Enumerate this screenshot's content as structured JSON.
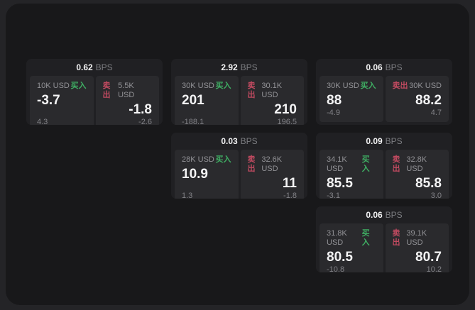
{
  "labels": {
    "bps_unit": "BPS",
    "buy": "买入",
    "sell": "卖出"
  },
  "colors": {
    "buy_green": "#3fae63",
    "sell_red": "#c04a60",
    "window_bg": "#18181a",
    "card_bg": "#202023",
    "panel_bg": "#2a2a2d"
  },
  "cards": [
    {
      "bps": "0.62",
      "buy": {
        "size": "10K USD",
        "price": "-3.7",
        "delta": "4.3"
      },
      "sell": {
        "size": "5.5K USD",
        "price": "-1.8",
        "delta": "-2.6"
      }
    },
    {
      "bps": "2.92",
      "buy": {
        "size": "30K USD",
        "price": "201",
        "delta": "-188.1"
      },
      "sell": {
        "size": "30.1K USD",
        "price": "210",
        "delta": "196.5"
      }
    },
    {
      "bps": "0.06",
      "buy": {
        "size": "30K USD",
        "price": "88",
        "delta": "-4.9"
      },
      "sell": {
        "size": "30K USD",
        "price": "88.2",
        "delta": "4.7"
      }
    },
    {
      "bps": "0.03",
      "buy": {
        "size": "28K USD",
        "price": "10.9",
        "delta": "1.3"
      },
      "sell": {
        "size": "32.6K USD",
        "price": "11",
        "delta": "-1.8"
      }
    },
    {
      "bps": "0.09",
      "buy": {
        "size": "34.1K USD",
        "price": "85.5",
        "delta": "-3.1"
      },
      "sell": {
        "size": "32.8K USD",
        "price": "85.8",
        "delta": "3.0"
      }
    },
    {
      "bps": "0.06",
      "buy": {
        "size": "31.8K USD",
        "price": "80.5",
        "delta": "-10.8"
      },
      "sell": {
        "size": "39.1K USD",
        "price": "80.7",
        "delta": "10.2"
      }
    }
  ]
}
